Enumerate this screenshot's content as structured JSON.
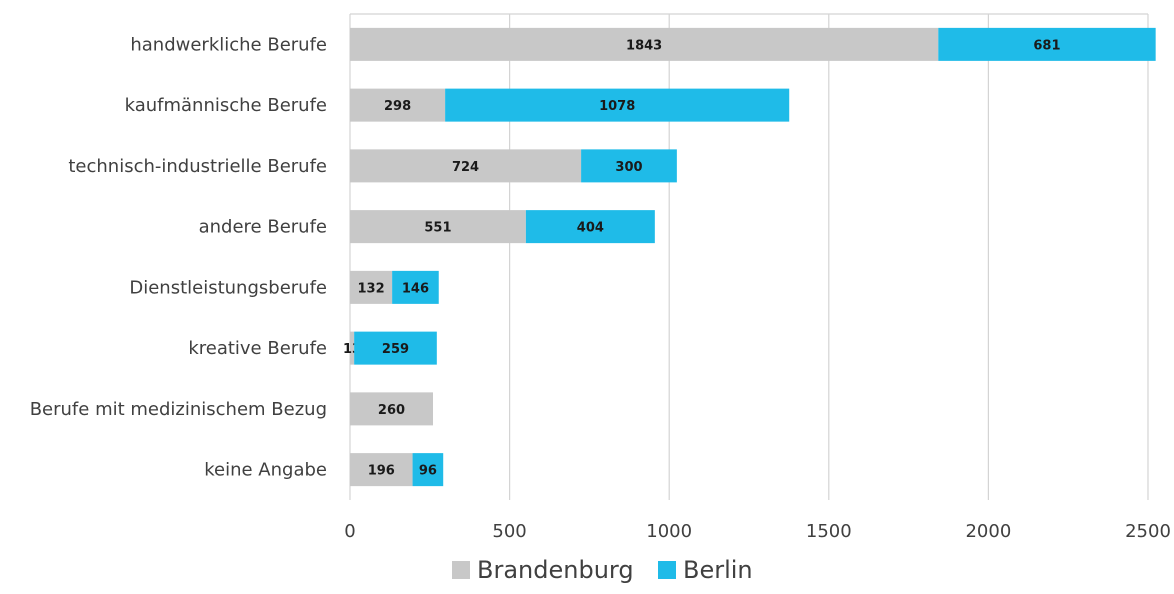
{
  "chart_data": {
    "type": "bar",
    "orientation": "horizontal",
    "stacked": true,
    "categories": [
      "handwerkliche Berufe",
      "kaufmännische Berufe",
      "technisch-industrielle Berufe",
      "andere Berufe",
      "Dienstleistungsberufe",
      "kreative Berufe",
      "Berufe mit medizinischem Bezug",
      "keine Angabe"
    ],
    "series": [
      {
        "name": "Brandenburg",
        "color": "#c8c8c8",
        "values": [
          1843,
          298,
          724,
          551,
          132,
          13,
          260,
          196
        ]
      },
      {
        "name": "Berlin",
        "color": "#1fbbe8",
        "values": [
          681,
          1078,
          300,
          404,
          146,
          259,
          0,
          96
        ]
      }
    ],
    "xlim": [
      0,
      2500
    ],
    "xticks": [
      0,
      500,
      1000,
      1500,
      2000,
      2500
    ],
    "grid": "vertical",
    "legend": "bottom",
    "title": "",
    "xlabel": "",
    "ylabel": ""
  }
}
